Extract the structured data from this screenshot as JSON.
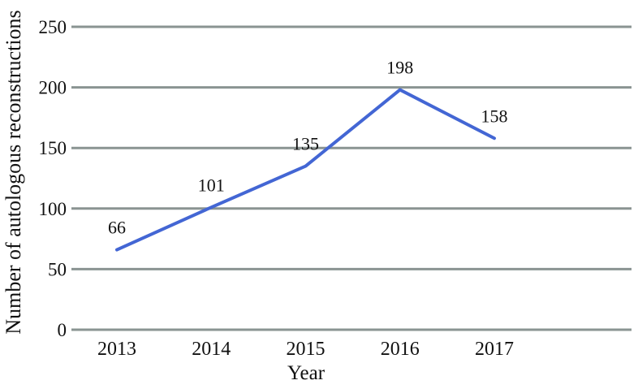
{
  "chart_data": {
    "type": "line",
    "x": [
      "2013",
      "2014",
      "2015",
      "2016",
      "2017"
    ],
    "values": [
      66,
      101,
      135,
      198,
      158
    ],
    "point_labels": [
      "66",
      "101",
      "135",
      "198",
      "158"
    ],
    "title": "",
    "xlabel": "Year",
    "ylabel": "Number of autologous reconstructions",
    "ylim": [
      0,
      250
    ],
    "yticks": [
      0,
      50,
      100,
      150,
      200,
      250
    ],
    "grid": "horizontal",
    "legend": "none",
    "line_color": "#4366d4",
    "gridline_color": "#8a9492",
    "text_color": "#111111",
    "background_color": "#ffffff"
  }
}
